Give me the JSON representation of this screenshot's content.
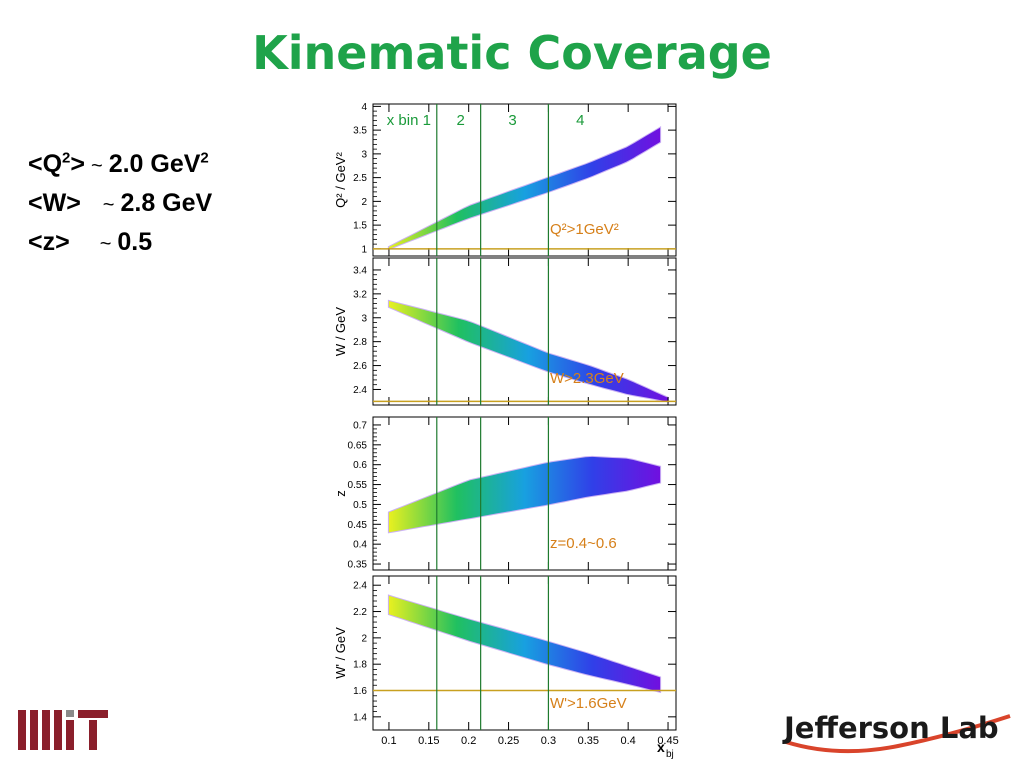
{
  "slide": {
    "title": "Kinematic Coverage",
    "averages": [
      {
        "lhs": "<Q",
        "sup": "2",
        "rhs": ">",
        "tilde": "~",
        "value": "2.0 GeV",
        "unit_sup": "2"
      },
      {
        "lhs": "<W>",
        "sup": "",
        "rhs": "",
        "tilde": "~",
        "value": "2.8 GeV",
        "unit_sup": ""
      },
      {
        "lhs": "<z>",
        "sup": "",
        "rhs": "",
        "tilde": "~",
        "value": "0.5",
        "unit_sup": ""
      }
    ],
    "logos": {
      "left": "MIT",
      "right": "Jefferson Lab"
    }
  },
  "chart_data": {
    "type": "scatter",
    "shared_x": {
      "label": "x",
      "label_sub": "bj",
      "range": [
        0.08,
        0.46
      ],
      "ticks": [
        0.1,
        0.15,
        0.2,
        0.25,
        0.3,
        0.35,
        0.4,
        0.45
      ],
      "tick_labels": [
        "0.1",
        "0.15",
        "0.2",
        "0.25",
        "0.3",
        "0.35",
        "0.4",
        "0.45"
      ]
    },
    "x_bins": {
      "edges": [
        0.16,
        0.215,
        0.3
      ],
      "labels": [
        "x bin 1",
        "2",
        "3",
        "4"
      ],
      "label_x": [
        0.125,
        0.19,
        0.255,
        0.34
      ]
    },
    "panels": [
      {
        "ylabel": "Q² / GeV²",
        "ylim": [
          0.85,
          4.05
        ],
        "yticks": [
          1,
          1.5,
          2,
          2.5,
          3,
          3.5,
          4
        ],
        "ytick_labels": [
          "1",
          "1.5",
          "2",
          "2.5",
          "3",
          "3.5",
          "4"
        ],
        "cut_value": 1.0,
        "cut_label": "Q²>1GeV²",
        "band": {
          "x": [
            0.1,
            0.2,
            0.3,
            0.35,
            0.4,
            0.44
          ],
          "lo": [
            1.0,
            1.65,
            2.2,
            2.5,
            2.85,
            3.25
          ],
          "hi": [
            1.04,
            1.9,
            2.5,
            2.8,
            3.15,
            3.55
          ]
        }
      },
      {
        "ylabel": "W / GeV",
        "ylim": [
          2.27,
          3.5
        ],
        "yticks": [
          2.4,
          2.6,
          2.8,
          3,
          3.2,
          3.4
        ],
        "ytick_labels": [
          "2.4",
          "2.6",
          "2.8",
          "3",
          "3.2",
          "3.4"
        ],
        "cut_value": 2.3,
        "cut_label": "W>2.3GeV",
        "band": {
          "x": [
            0.1,
            0.2,
            0.3,
            0.35,
            0.4,
            0.45
          ],
          "lo": [
            3.09,
            2.8,
            2.55,
            2.45,
            2.36,
            2.3
          ],
          "hi": [
            3.14,
            2.97,
            2.7,
            2.6,
            2.48,
            2.33
          ]
        }
      },
      {
        "ylabel": "z",
        "ylim": [
          0.335,
          0.72
        ],
        "yticks": [
          0.35,
          0.4,
          0.45,
          0.5,
          0.55,
          0.6,
          0.65,
          0.7
        ],
        "ytick_labels": [
          "0.35",
          "0.4",
          "0.45",
          "0.5",
          "0.55",
          "0.6",
          "0.65",
          "0.7"
        ],
        "cut_value": null,
        "cut_label": "z=0.4~0.6",
        "band": {
          "x": [
            0.1,
            0.2,
            0.3,
            0.35,
            0.4,
            0.44
          ],
          "lo": [
            0.43,
            0.465,
            0.5,
            0.52,
            0.535,
            0.555
          ],
          "hi": [
            0.48,
            0.56,
            0.605,
            0.62,
            0.615,
            0.595
          ]
        }
      },
      {
        "ylabel": "W' / GeV",
        "ylim": [
          1.3,
          2.47
        ],
        "yticks": [
          1.4,
          1.6,
          1.8,
          2,
          2.2,
          2.4
        ],
        "ytick_labels": [
          "1.4",
          "1.6",
          "1.8",
          "2",
          "2.2",
          "2.4"
        ],
        "cut_value": 1.6,
        "cut_label": "W'>1.6GeV",
        "band": {
          "x": [
            0.1,
            0.2,
            0.3,
            0.35,
            0.4,
            0.44
          ],
          "lo": [
            2.18,
            1.98,
            1.8,
            1.72,
            1.65,
            1.59
          ],
          "hi": [
            2.32,
            2.14,
            1.97,
            1.88,
            1.78,
            1.7
          ]
        }
      }
    ]
  },
  "colors": {
    "title": "#1fa34a",
    "bin_lines": "#1e7a2e",
    "cut_lines": "#c8a020",
    "cut_labels": "#d6801a",
    "bin_labels": "#1a9a3a",
    "mit": "#8a1f2b",
    "jlab_text": "#1a1a1a",
    "jlab_swoosh": "#d9442b"
  }
}
